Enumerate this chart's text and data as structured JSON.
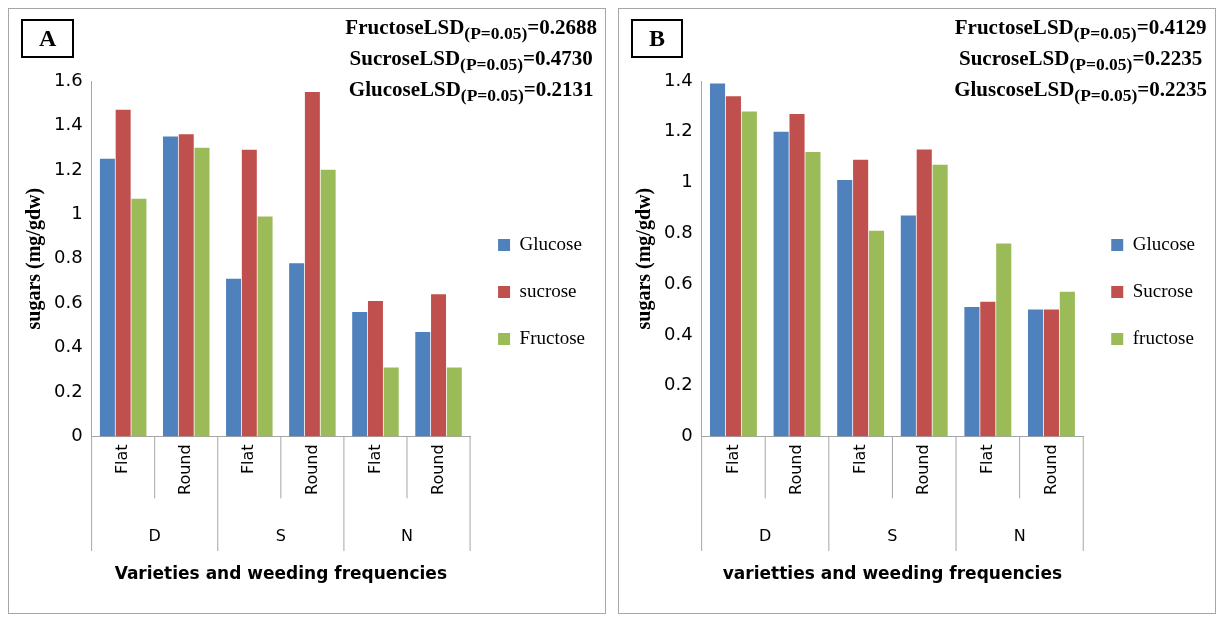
{
  "chart_data": [
    {
      "type": "bar",
      "title": "A",
      "ylabel": "sugars (mg/gdw)",
      "xlabel": "Varieties and weeding frequencies",
      "categories": [
        "Flat",
        "Round",
        "Flat",
        "Round",
        "Flat",
        "Round"
      ],
      "series": [
        {
          "name": "Glucose",
          "color": "#4f81bd",
          "values": [
            1.25,
            1.35,
            0.71,
            0.78,
            0.56,
            0.47
          ]
        },
        {
          "name": "sucrose",
          "color": "#c0504d",
          "values": [
            1.47,
            1.36,
            1.29,
            1.55,
            0.61,
            0.64
          ]
        },
        {
          "name": "Fructose",
          "color": "#9bbb59",
          "values": [
            1.07,
            1.3,
            0.99,
            1.2,
            0.31,
            0.31
          ]
        }
      ],
      "ylim": [
        0,
        1.6
      ],
      "yticks": [
        0,
        0.2,
        0.4,
        0.6,
        0.8,
        1,
        1.2,
        1.4,
        1.6
      ],
      "grid": false,
      "legend": "right",
      "annotations": [
        "FructoseLSD$_{(P=0.05)}$=0.2688",
        "SucroseLSD$_{(P=0.05)}$=0.4730",
        "GlucoseLSD$_{(P=0.05)}$=0.2131",
        "D",
        "S",
        "N"
      ]
    },
    {
      "type": "bar",
      "title": "B",
      "ylabel": "sugars (mg/gdw)",
      "xlabel": "varietties and weeding frequencies",
      "categories": [
        "Flat",
        "Round",
        "Flat",
        "Round",
        "Flat",
        "Round"
      ],
      "series": [
        {
          "name": "Glucose",
          "color": "#4f81bd",
          "values": [
            1.39,
            1.2,
            1.01,
            0.87,
            0.51,
            0.5
          ]
        },
        {
          "name": "Sucrose",
          "color": "#c0504d",
          "values": [
            1.34,
            1.27,
            1.09,
            1.13,
            0.53,
            0.5
          ]
        },
        {
          "name": "fructose",
          "color": "#9bbb59",
          "values": [
            1.28,
            1.12,
            0.81,
            1.07,
            0.76,
            0.57
          ]
        }
      ],
      "ylim": [
        0,
        1.4
      ],
      "yticks": [
        0,
        0.2,
        0.4,
        0.6,
        0.8,
        1,
        1.2,
        1.4
      ],
      "grid": false,
      "legend": "right",
      "annotations": [
        "FructoseLSD$_{(P=0.05)}$=0.4129",
        "SucroseLSD$_{(P=0.05)}$=0.2235",
        "GluscoseLSD$_{(P=0.05)}$=0.2235",
        "D",
        "S",
        "N"
      ]
    }
  ]
}
